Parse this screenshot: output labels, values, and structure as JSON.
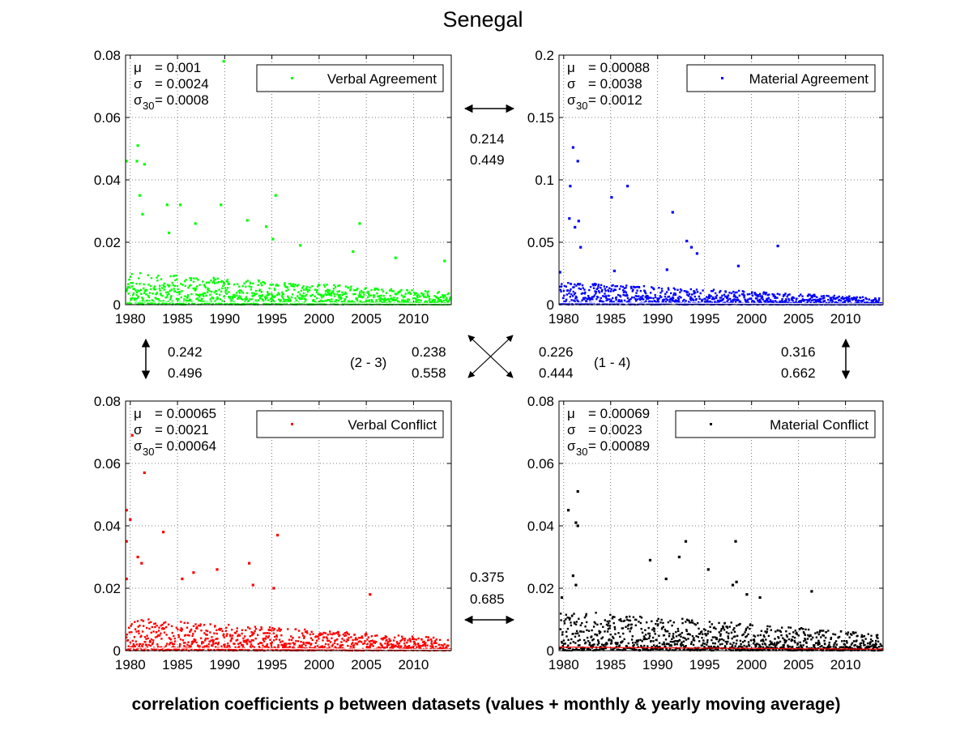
{
  "title": "Senegal",
  "footer": "correlation coefficients ρ between datasets (values + monthly & yearly moving average)",
  "chart_data": [
    {
      "type": "scatter",
      "legend": "Verbal Agreement",
      "color": "#00ff00",
      "ylim": [
        0,
        0.08
      ],
      "yticks": [
        "0",
        "0.02",
        "0.04",
        "0.06",
        "0.08"
      ],
      "xticks": [
        "1980",
        "1985",
        "1990",
        "1995",
        "2000",
        "2005",
        "2010"
      ],
      "xlim": [
        1979.5,
        2014
      ],
      "grid": true,
      "legend_position": "top-right",
      "stats": {
        "mu": "= 0.001",
        "sigma": "= 0.0024",
        "sigma30": "= 0.0008"
      },
      "outliers": [
        [
          1979.6,
          0.046
        ],
        [
          1980.8,
          0.051
        ],
        [
          1980.7,
          0.046
        ],
        [
          1981.5,
          0.045
        ],
        [
          1981.0,
          0.035
        ],
        [
          1983.9,
          0.032
        ],
        [
          1985.3,
          0.032
        ],
        [
          1981.3,
          0.029
        ],
        [
          1984.1,
          0.023
        ],
        [
          1986.9,
          0.026
        ],
        [
          1989.6,
          0.032
        ],
        [
          1989.9,
          0.078
        ],
        [
          1992.4,
          0.027
        ],
        [
          1994.4,
          0.025
        ],
        [
          1995.4,
          0.035
        ],
        [
          1995.1,
          0.021
        ],
        [
          1998.0,
          0.019
        ],
        [
          2004.3,
          0.026
        ],
        [
          2003.6,
          0.017
        ],
        [
          2008.1,
          0.015
        ],
        [
          2013.3,
          0.014
        ]
      ],
      "baseline_level": 0.004,
      "baseline_decay_to": 0.0015
    },
    {
      "type": "scatter",
      "legend": "Material Agreement",
      "color": "#0000ff",
      "ylim": [
        0,
        0.2
      ],
      "yticks": [
        "0",
        "0.05",
        "0.1",
        "0.15",
        "0.2"
      ],
      "xticks": [
        "1980",
        "1985",
        "1990",
        "1995",
        "2000",
        "2005",
        "2010"
      ],
      "xlim": [
        1979.5,
        2014
      ],
      "grid": true,
      "legend_position": "top-right",
      "stats": {
        "mu": "= 0.00088",
        "sigma": "= 0.0038",
        "sigma30": "= 0.0012"
      },
      "outliers": [
        [
          1981.0,
          0.126
        ],
        [
          1981.5,
          0.115
        ],
        [
          1980.7,
          0.095
        ],
        [
          1981.6,
          0.067
        ],
        [
          1980.6,
          0.069
        ],
        [
          1981.2,
          0.062
        ],
        [
          1985.1,
          0.086
        ],
        [
          1986.8,
          0.095
        ],
        [
          1991.6,
          0.074
        ],
        [
          1993.1,
          0.051
        ],
        [
          1993.6,
          0.046
        ],
        [
          1994.2,
          0.041
        ],
        [
          2002.8,
          0.047
        ],
        [
          1979.6,
          0.026
        ],
        [
          1981.8,
          0.046
        ],
        [
          1985.4,
          0.027
        ],
        [
          1998.6,
          0.031
        ],
        [
          1991.0,
          0.028
        ]
      ],
      "baseline_level": 0.007,
      "baseline_decay_to": 0.002
    },
    {
      "type": "scatter",
      "legend": "Verbal Conflict",
      "color": "#ff0000",
      "ylim": [
        0,
        0.08
      ],
      "yticks": [
        "0",
        "0.02",
        "0.04",
        "0.06",
        "0.08"
      ],
      "xticks": [
        "1980",
        "1985",
        "1990",
        "1995",
        "2000",
        "2005",
        "2010"
      ],
      "xlim": [
        1979.5,
        2014
      ],
      "grid": true,
      "legend_position": "top-right",
      "stats": {
        "mu": "= 0.00065",
        "sigma": "= 0.0021",
        "sigma30": "= 0.00064"
      },
      "outliers": [
        [
          1979.6,
          0.045
        ],
        [
          1980.2,
          0.069
        ],
        [
          1981.5,
          0.057
        ],
        [
          1980.0,
          0.042
        ],
        [
          1979.6,
          0.035
        ],
        [
          1983.5,
          0.038
        ],
        [
          1980.8,
          0.03
        ],
        [
          1981.2,
          0.028
        ],
        [
          1986.7,
          0.025
        ],
        [
          1989.2,
          0.026
        ],
        [
          1992.6,
          0.028
        ],
        [
          1995.6,
          0.037
        ],
        [
          1993.0,
          0.021
        ],
        [
          2005.4,
          0.018
        ],
        [
          1979.6,
          0.023
        ],
        [
          1995.2,
          0.02
        ],
        [
          1985.5,
          0.023
        ]
      ],
      "baseline_level": 0.004,
      "baseline_decay_to": 0.0015
    },
    {
      "type": "scatter",
      "legend": "Material Conflict",
      "color": "#000000",
      "ylim": [
        0,
        0.08
      ],
      "yticks": [
        "0",
        "0.02",
        "0.04",
        "0.06",
        "0.08"
      ],
      "xticks": [
        "1980",
        "1985",
        "1990",
        "1995",
        "2000",
        "2005",
        "2010"
      ],
      "xlim": [
        1979.5,
        2014
      ],
      "grid": true,
      "legend_position": "top-right",
      "stats": {
        "mu": "= 0.00069",
        "sigma": "= 0.0023",
        "sigma30": "= 0.00089"
      },
      "outliers": [
        [
          1980.5,
          0.045
        ],
        [
          1981.5,
          0.051
        ],
        [
          1981.3,
          0.041
        ],
        [
          1981.5,
          0.04
        ],
        [
          1979.8,
          0.017
        ],
        [
          1989.2,
          0.029
        ],
        [
          1992.3,
          0.03
        ],
        [
          1993.0,
          0.035
        ],
        [
          1995.4,
          0.026
        ],
        [
          1998.3,
          0.035
        ],
        [
          1990.9,
          0.023
        ],
        [
          1998.4,
          0.022
        ],
        [
          1998.0,
          0.021
        ],
        [
          2006.4,
          0.019
        ],
        [
          1981.0,
          0.024
        ],
        [
          1981.3,
          0.021
        ],
        [
          2000.9,
          0.017
        ],
        [
          1999.5,
          0.018
        ]
      ],
      "baseline_level": 0.005,
      "baseline_decay_to": 0.002
    }
  ],
  "correlations": {
    "top": {
      "a": "0.214",
      "b": "0.449"
    },
    "bottom": {
      "a": "0.375",
      "b": "0.685"
    },
    "left": {
      "a": "0.242",
      "b": "0.496"
    },
    "right": {
      "a": "0.316",
      "b": "0.662"
    },
    "diag_23": {
      "label": "(2 - 3)",
      "a": "0.238",
      "b": "0.558"
    },
    "diag_14": {
      "label": "(1 - 4)",
      "a": "0.226",
      "b": "0.444"
    }
  },
  "symbols": {
    "mu": "μ",
    "sigma": "σ",
    "sub30": "30"
  }
}
